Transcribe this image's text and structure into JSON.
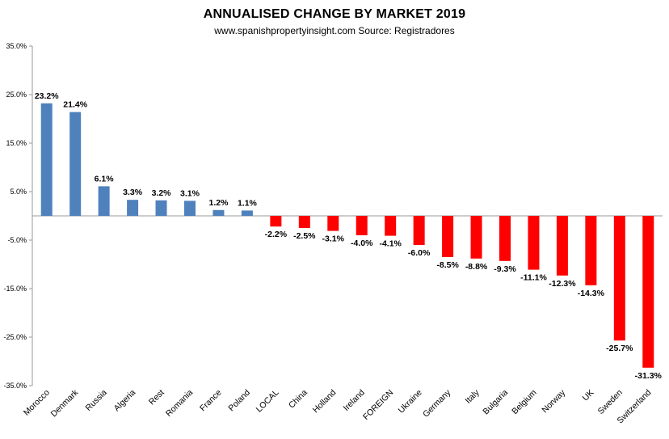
{
  "chart_data": {
    "type": "bar",
    "title": "ANNUALISED CHANGE BY MARKET 2019",
    "subtitle": "www.spanishpropertyinsight.com Source:  Registradores",
    "xlabel": "",
    "ylabel": "",
    "ylim": [
      -35,
      35
    ],
    "yticks": [
      {
        "value": 35,
        "label": "35.0%"
      },
      {
        "value": 25,
        "label": "25.0%"
      },
      {
        "value": 15,
        "label": "15.0%"
      },
      {
        "value": 5,
        "label": "5.0%"
      },
      {
        "value": -5,
        "label": "-5.0%"
      },
      {
        "value": -15,
        "label": "-15.0%"
      },
      {
        "value": -25,
        "label": "-25.0%"
      },
      {
        "value": -35,
        "label": "-35.0%"
      }
    ],
    "grid": false,
    "legend": "none",
    "colors": {
      "positive": "#4f81bd",
      "negative": "#ff0000"
    },
    "categories": [
      "Morocco",
      "Denmark",
      "Russia",
      "Algeria",
      "Rest",
      "Romania",
      "France",
      "Poland",
      "LOCAL",
      "China",
      "Holland",
      "Ireland",
      "FOREIGN",
      "Ukraine",
      "Germany",
      "Italy",
      "Bulgaria",
      "Belgium",
      "Norway",
      "UK",
      "Sweden",
      "Switzerland"
    ],
    "values": [
      23.2,
      21.4,
      6.1,
      3.3,
      3.2,
      3.1,
      1.2,
      1.1,
      -2.2,
      -2.5,
      -3.1,
      -4.0,
      -4.1,
      -6.0,
      -8.5,
      -8.8,
      -9.3,
      -11.1,
      -12.3,
      -14.3,
      -25.7,
      -31.3
    ],
    "data_labels": [
      "23.2%",
      "21.4%",
      "6.1%",
      "3.3%",
      "3.2%",
      "3.1%",
      "1.2%",
      "1.1%",
      "-2.2%",
      "-2.5%",
      "-3.1%",
      "-4.0%",
      "-4.1%",
      "-6.0%",
      "-8.5%",
      "-8.8%",
      "-9.3%",
      "-11.1%",
      "-12.3%",
      "-14.3%",
      "-25.7%",
      "-31.3%"
    ]
  }
}
